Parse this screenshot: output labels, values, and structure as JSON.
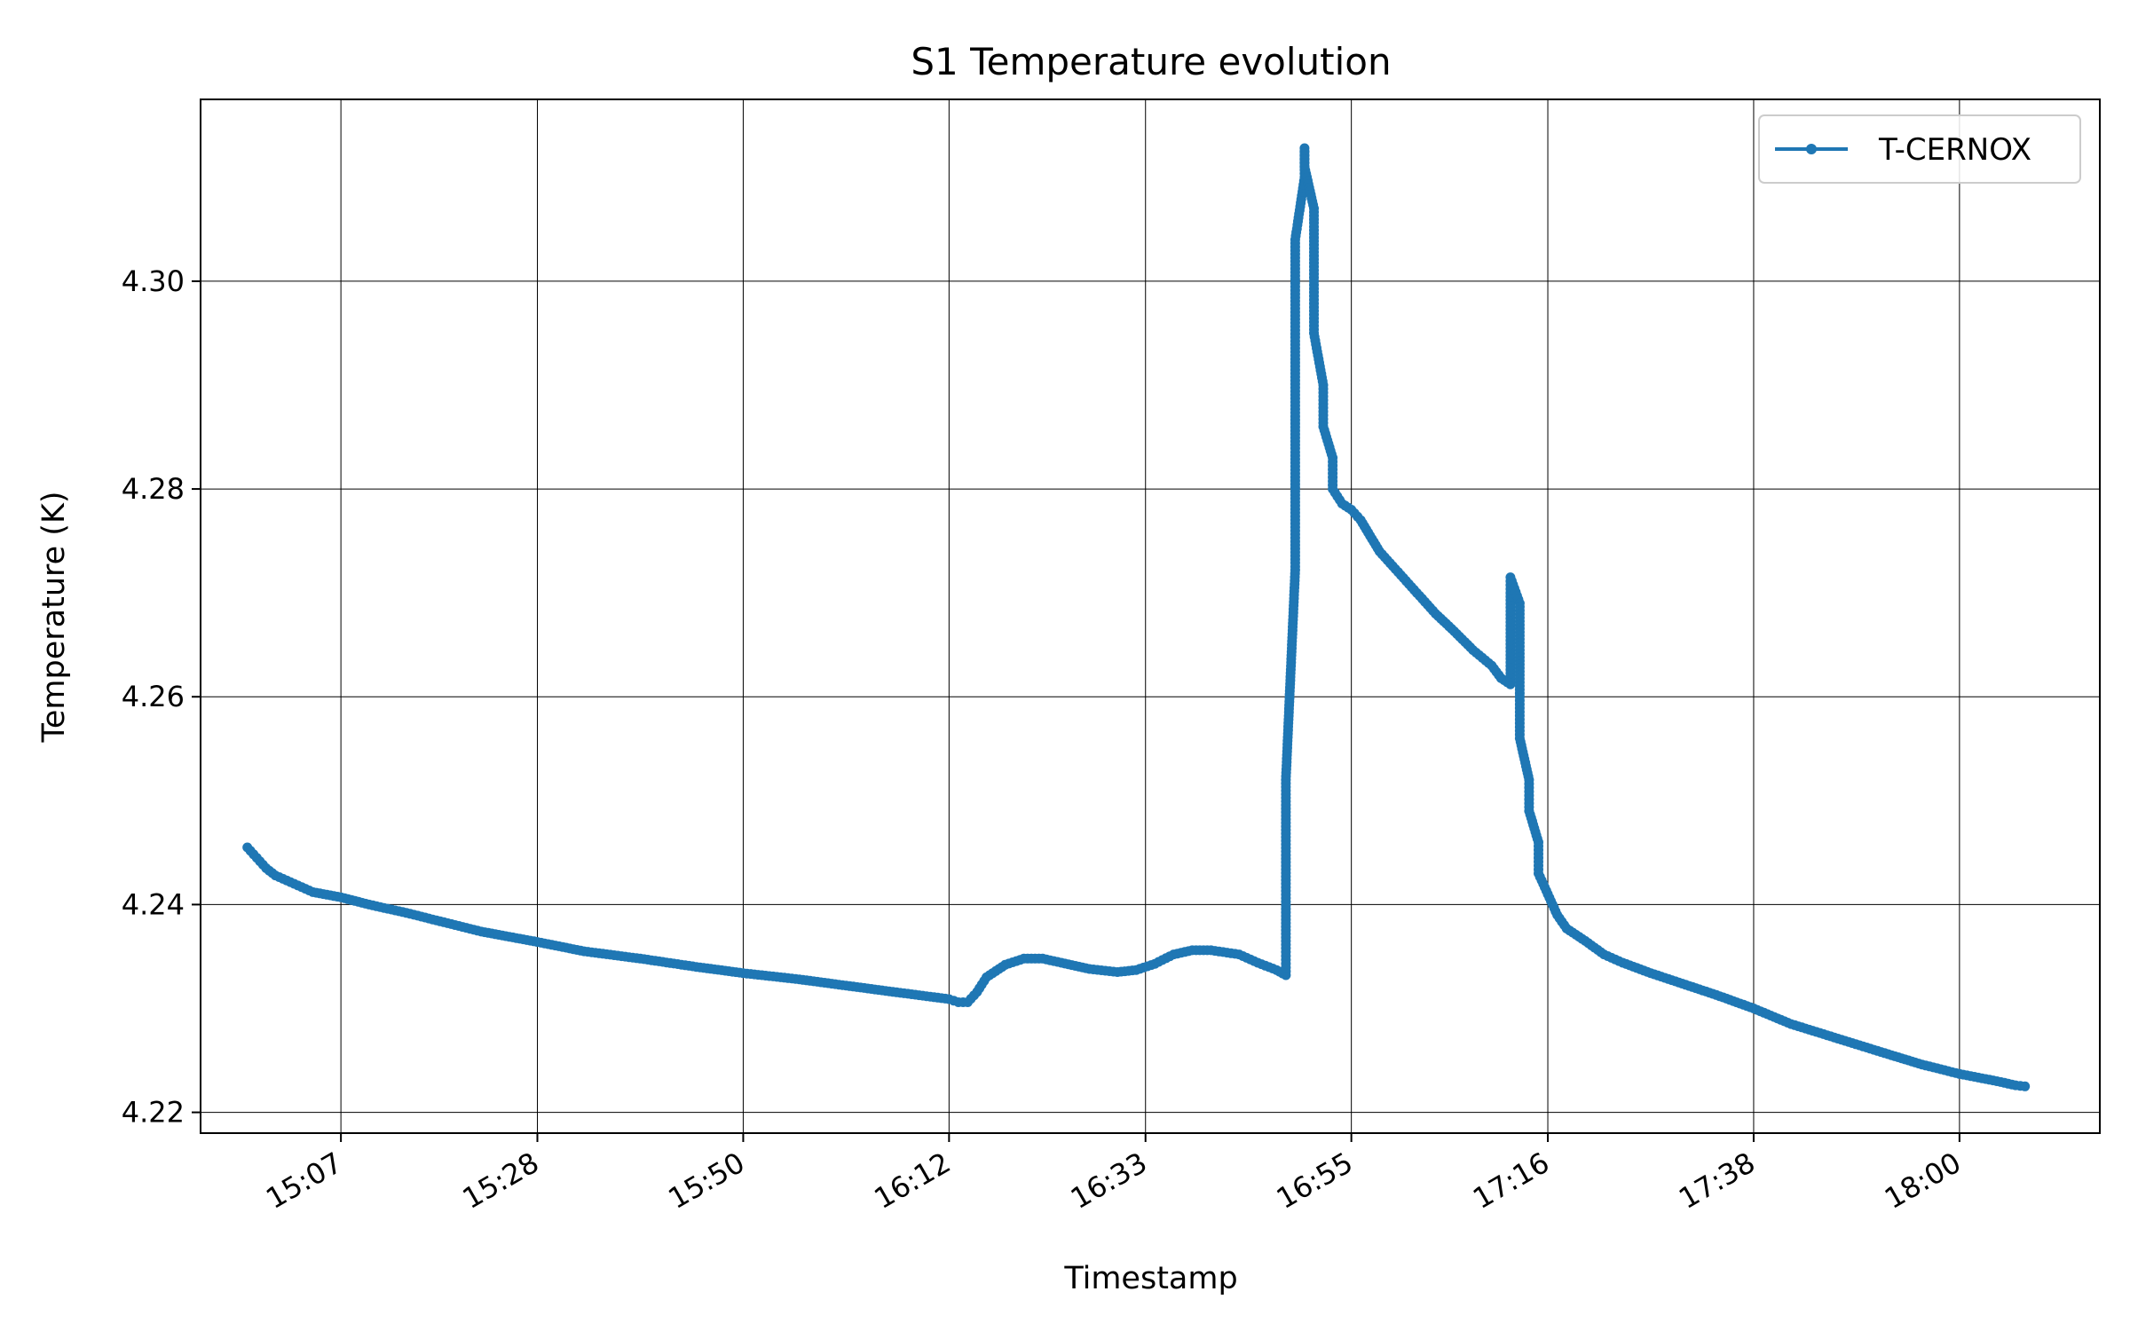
{
  "chart_data": {
    "type": "line",
    "title": "S1 Temperature evolution",
    "xlabel": "Timestamp",
    "ylabel": "Temperature (K)",
    "xlim": [
      "14:52",
      "18:15"
    ],
    "ylim": [
      4.218,
      4.3175
    ],
    "grid": true,
    "legend": {
      "position": "top-right"
    },
    "x_ticks": [
      "15:07",
      "15:28",
      "15:50",
      "16:12",
      "16:33",
      "16:55",
      "17:16",
      "17:38",
      "18:00"
    ],
    "y_ticks": [
      "4.22",
      "4.24",
      "4.26",
      "4.28",
      "4.30"
    ],
    "series": [
      {
        "name": "T-CERNOX",
        "color": "#1f77b4",
        "marker": "dot",
        "points": [
          [
            "14:57",
            4.2455
          ],
          [
            "14:58",
            4.2445
          ],
          [
            "14:59",
            4.2435
          ],
          [
            "15:00",
            4.2428
          ],
          [
            "15:02",
            4.242
          ],
          [
            "15:04",
            4.2412
          ],
          [
            "15:07",
            4.2407
          ],
          [
            "15:10",
            4.24
          ],
          [
            "15:14",
            4.2392
          ],
          [
            "15:18",
            4.2383
          ],
          [
            "15:22",
            4.2374
          ],
          [
            "15:28",
            4.2364
          ],
          [
            "15:33",
            4.2355
          ],
          [
            "15:39",
            4.2348
          ],
          [
            "15:45",
            4.234
          ],
          [
            "15:50",
            4.2334
          ],
          [
            "15:56",
            4.2328
          ],
          [
            "16:01",
            4.2322
          ],
          [
            "16:06",
            4.2316
          ],
          [
            "16:12",
            4.2309
          ],
          [
            "16:13",
            4.2306
          ],
          [
            "16:14",
            4.2306
          ],
          [
            "16:15",
            4.2316
          ],
          [
            "16:16",
            4.233
          ],
          [
            "16:18",
            4.2342
          ],
          [
            "16:20",
            4.2348
          ],
          [
            "16:22",
            4.2348
          ],
          [
            "16:24",
            4.2344
          ],
          [
            "16:27",
            4.2338
          ],
          [
            "16:30",
            4.2335
          ],
          [
            "16:32",
            4.2337
          ],
          [
            "16:34",
            4.2343
          ],
          [
            "16:36",
            4.2352
          ],
          [
            "16:38",
            4.2356
          ],
          [
            "16:40",
            4.2356
          ],
          [
            "16:43",
            4.2352
          ],
          [
            "16:45",
            4.2344
          ],
          [
            "16:47",
            4.2337
          ],
          [
            "16:48",
            4.2332
          ],
          [
            "16:48",
            4.2358
          ],
          [
            "16:48",
            4.252
          ],
          [
            "16:49",
            4.2722
          ],
          [
            "16:49",
            4.2925
          ],
          [
            "16:49",
            4.304
          ],
          [
            "16:50",
            4.31
          ],
          [
            "16:50",
            4.3125
          ],
          [
            "16:50",
            4.3128
          ],
          [
            "16:50",
            4.311
          ],
          [
            "16:51",
            4.307
          ],
          [
            "16:51",
            4.3
          ],
          [
            "16:51",
            4.295
          ],
          [
            "16:52",
            4.29
          ],
          [
            "16:52",
            4.286
          ],
          [
            "16:53",
            4.283
          ],
          [
            "16:53",
            4.28
          ],
          [
            "16:54",
            4.2786
          ],
          [
            "16:55",
            4.278
          ],
          [
            "16:56",
            4.277
          ],
          [
            "16:57",
            4.2755
          ],
          [
            "16:58",
            4.274
          ],
          [
            "17:00",
            4.272
          ],
          [
            "17:02",
            4.27
          ],
          [
            "17:04",
            4.268
          ],
          [
            "17:06",
            4.2663
          ],
          [
            "17:08",
            4.2645
          ],
          [
            "17:10",
            4.263
          ],
          [
            "17:11",
            4.2618
          ],
          [
            "17:12",
            4.2612
          ],
          [
            "17:12",
            4.27
          ],
          [
            "17:12",
            4.2715
          ],
          [
            "17:13",
            4.269
          ],
          [
            "17:13",
            4.26
          ],
          [
            "17:13",
            4.256
          ],
          [
            "17:14",
            4.252
          ],
          [
            "17:14",
            4.249
          ],
          [
            "17:15",
            4.246
          ],
          [
            "17:15",
            4.243
          ],
          [
            "17:16",
            4.241
          ],
          [
            "17:17",
            4.239
          ],
          [
            "17:18",
            4.2377
          ],
          [
            "17:20",
            4.2365
          ],
          [
            "17:22",
            4.2352
          ],
          [
            "17:24",
            4.2344
          ],
          [
            "17:27",
            4.2334
          ],
          [
            "17:30",
            4.2325
          ],
          [
            "17:34",
            4.2313
          ],
          [
            "17:38",
            4.23
          ],
          [
            "17:42",
            4.2285
          ],
          [
            "17:47",
            4.2271
          ],
          [
            "17:52",
            4.2257
          ],
          [
            "17:56",
            4.2246
          ],
          [
            "18:00",
            4.2237
          ],
          [
            "18:04",
            4.223
          ],
          [
            "18:06",
            4.2226
          ],
          [
            "18:07",
            4.2225
          ]
        ]
      }
    ]
  }
}
